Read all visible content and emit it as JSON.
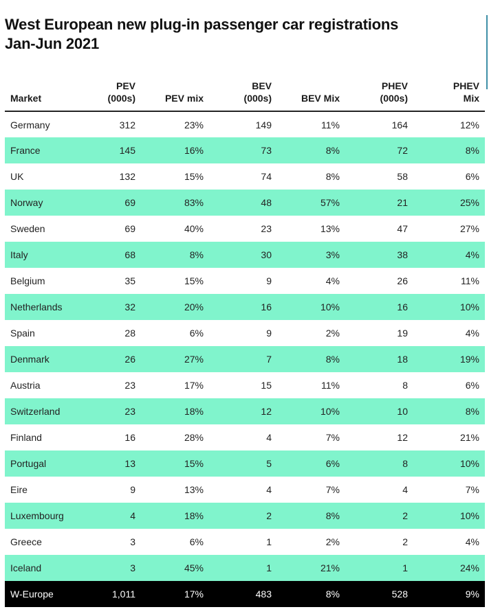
{
  "chart_data": {
    "type": "table",
    "title_lines": [
      "West European new plug-in passenger car registrations",
      "Jan-Jun 2021"
    ],
    "columns": [
      {
        "key": "market",
        "lines": [
          "Market"
        ]
      },
      {
        "key": "pev",
        "lines": [
          "PEV",
          "(000s)"
        ]
      },
      {
        "key": "pev_mix",
        "lines": [
          "PEV mix"
        ]
      },
      {
        "key": "bev",
        "lines": [
          "BEV",
          "(000s)"
        ]
      },
      {
        "key": "bev_mix",
        "lines": [
          "BEV Mix"
        ]
      },
      {
        "key": "phev",
        "lines": [
          "PHEV",
          "(000s)"
        ]
      },
      {
        "key": "phev_mix",
        "lines": [
          "PHEV",
          "Mix"
        ]
      }
    ],
    "rows": [
      [
        "Germany",
        "312",
        "23%",
        "149",
        "11%",
        "164",
        "12%"
      ],
      [
        "France",
        "145",
        "16%",
        "73",
        "8%",
        "72",
        "8%"
      ],
      [
        "UK",
        "132",
        "15%",
        "74",
        "8%",
        "58",
        "6%"
      ],
      [
        "Norway",
        "69",
        "83%",
        "48",
        "57%",
        "21",
        "25%"
      ],
      [
        "Sweden",
        "69",
        "40%",
        "23",
        "13%",
        "47",
        "27%"
      ],
      [
        "Italy",
        "68",
        "8%",
        "30",
        "3%",
        "38",
        "4%"
      ],
      [
        "Belgium",
        "35",
        "15%",
        "9",
        "4%",
        "26",
        "11%"
      ],
      [
        "Netherlands",
        "32",
        "20%",
        "16",
        "10%",
        "16",
        "10%"
      ],
      [
        "Spain",
        "28",
        "6%",
        "9",
        "2%",
        "19",
        "4%"
      ],
      [
        "Denmark",
        "26",
        "27%",
        "7",
        "8%",
        "18",
        "19%"
      ],
      [
        "Austria",
        "23",
        "17%",
        "15",
        "11%",
        "8",
        "6%"
      ],
      [
        "Switzerland",
        "23",
        "18%",
        "12",
        "10%",
        "10",
        "8%"
      ],
      [
        "Finland",
        "16",
        "28%",
        "4",
        "7%",
        "12",
        "21%"
      ],
      [
        "Portugal",
        "13",
        "15%",
        "5",
        "6%",
        "8",
        "10%"
      ],
      [
        "Eire",
        "9",
        "13%",
        "4",
        "7%",
        "4",
        "7%"
      ],
      [
        "Luxembourg",
        "4",
        "18%",
        "2",
        "8%",
        "2",
        "10%"
      ],
      [
        "Greece",
        "3",
        "6%",
        "1",
        "2%",
        "2",
        "4%"
      ],
      [
        "Iceland",
        "3",
        "45%",
        "1",
        "21%",
        "1",
        "24%"
      ]
    ],
    "total_row": [
      "W-Europe",
      "1,011",
      "17%",
      "483",
      "8%",
      "528",
      "9%"
    ]
  },
  "colors": {
    "stripe": "#80f4cc",
    "total_background": "#000000",
    "total_text": "#ffffff",
    "edge_accent": "#3d8fa6"
  }
}
